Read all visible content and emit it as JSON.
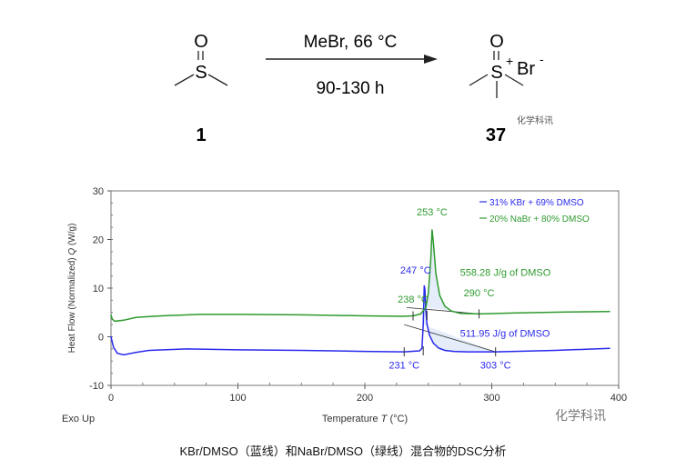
{
  "scheme": {
    "reactant": {
      "atoms": [
        "O",
        "S"
      ],
      "label": "1"
    },
    "conditions_top": "MeBr, 66 °C",
    "conditions_bottom": "90-130 h",
    "product": {
      "atoms": [
        "O",
        "S",
        "+",
        "Br",
        "-"
      ],
      "label": "37"
    },
    "watermark_small": "化学科讯"
  },
  "chart_data": {
    "type": "line",
    "xlabel": "Temperature",
    "xlabel_symbol": "T",
    "xlabel_unit": "(°C)",
    "ylabel": "Heat Flow (Normalized)",
    "ylabel_symbol": "Q",
    "ylabel_unit": "(W/g)",
    "corner_label": "Exo Up",
    "xlim": [
      0,
      400
    ],
    "ylim": [
      -10,
      30
    ],
    "xticks": [
      0,
      100,
      200,
      300,
      400
    ],
    "yticks": [
      -10,
      0,
      10,
      20,
      30
    ],
    "grid": false,
    "legend_position": "top-right",
    "series": [
      {
        "name": "31% KBr + 69% DMSO",
        "color": "#2a2aee",
        "x": [
          0,
          2,
          5,
          10,
          20,
          30,
          60,
          100,
          150,
          200,
          231,
          243,
          245,
          246,
          246.8,
          247.3,
          248,
          249,
          251,
          254,
          258,
          263,
          270,
          280,
          303,
          350,
          393
        ],
        "y": [
          0,
          -2.2,
          -3.4,
          -3.7,
          -3.2,
          -2.8,
          -2.5,
          -2.7,
          -2.8,
          -3.0,
          -3.1,
          -2.9,
          -2.4,
          2.5,
          10.5,
          9.8,
          5.5,
          2.5,
          0.3,
          -1.3,
          -2.3,
          -2.8,
          -3.0,
          -3.1,
          -3.1,
          -2.8,
          -2.4
        ]
      },
      {
        "name": "20% NaBr + 80% DMSO",
        "color": "#2e9a2e",
        "x": [
          0,
          1,
          3,
          10,
          20,
          40,
          70,
          100,
          150,
          200,
          230,
          238,
          244,
          248,
          250,
          252,
          253,
          254,
          256,
          259,
          263,
          268,
          275,
          290,
          320,
          360,
          393
        ],
        "y": [
          4.5,
          3.6,
          3.2,
          3.4,
          4.0,
          4.3,
          4.6,
          4.6,
          4.5,
          4.3,
          4.2,
          4.3,
          4.7,
          6.0,
          9.0,
          16.0,
          22.0,
          19.5,
          13.0,
          8.5,
          6.3,
          5.3,
          4.8,
          4.7,
          4.9,
          5.1,
          5.2
        ]
      }
    ],
    "annotations": [
      {
        "text": "253 °C",
        "series": 1,
        "x": 253,
        "y": 25
      },
      {
        "text": "238 °C",
        "series": 1,
        "x": 238,
        "y": 7
      },
      {
        "text": "290 °C",
        "series": 1,
        "x": 290,
        "y": 8.3
      },
      {
        "text": "558.28 J/g of DMSO",
        "series": 1,
        "x": 275,
        "y": 12.5
      },
      {
        "text": "247 °C",
        "series": 0,
        "x": 240,
        "y": 13
      },
      {
        "text": "231 °C",
        "series": 0,
        "x": 231,
        "y": -6.5
      },
      {
        "text": "303 °C",
        "series": 0,
        "x": 303,
        "y": -6.5
      },
      {
        "text": "511.95 J/g of DMSO",
        "series": 0,
        "x": 275,
        "y": 0
      }
    ]
  },
  "watermark": "化学科讯",
  "caption": "KBr/DMSO（蓝线）和NaBr/DMSO（绿线）混合物的DSC分析"
}
